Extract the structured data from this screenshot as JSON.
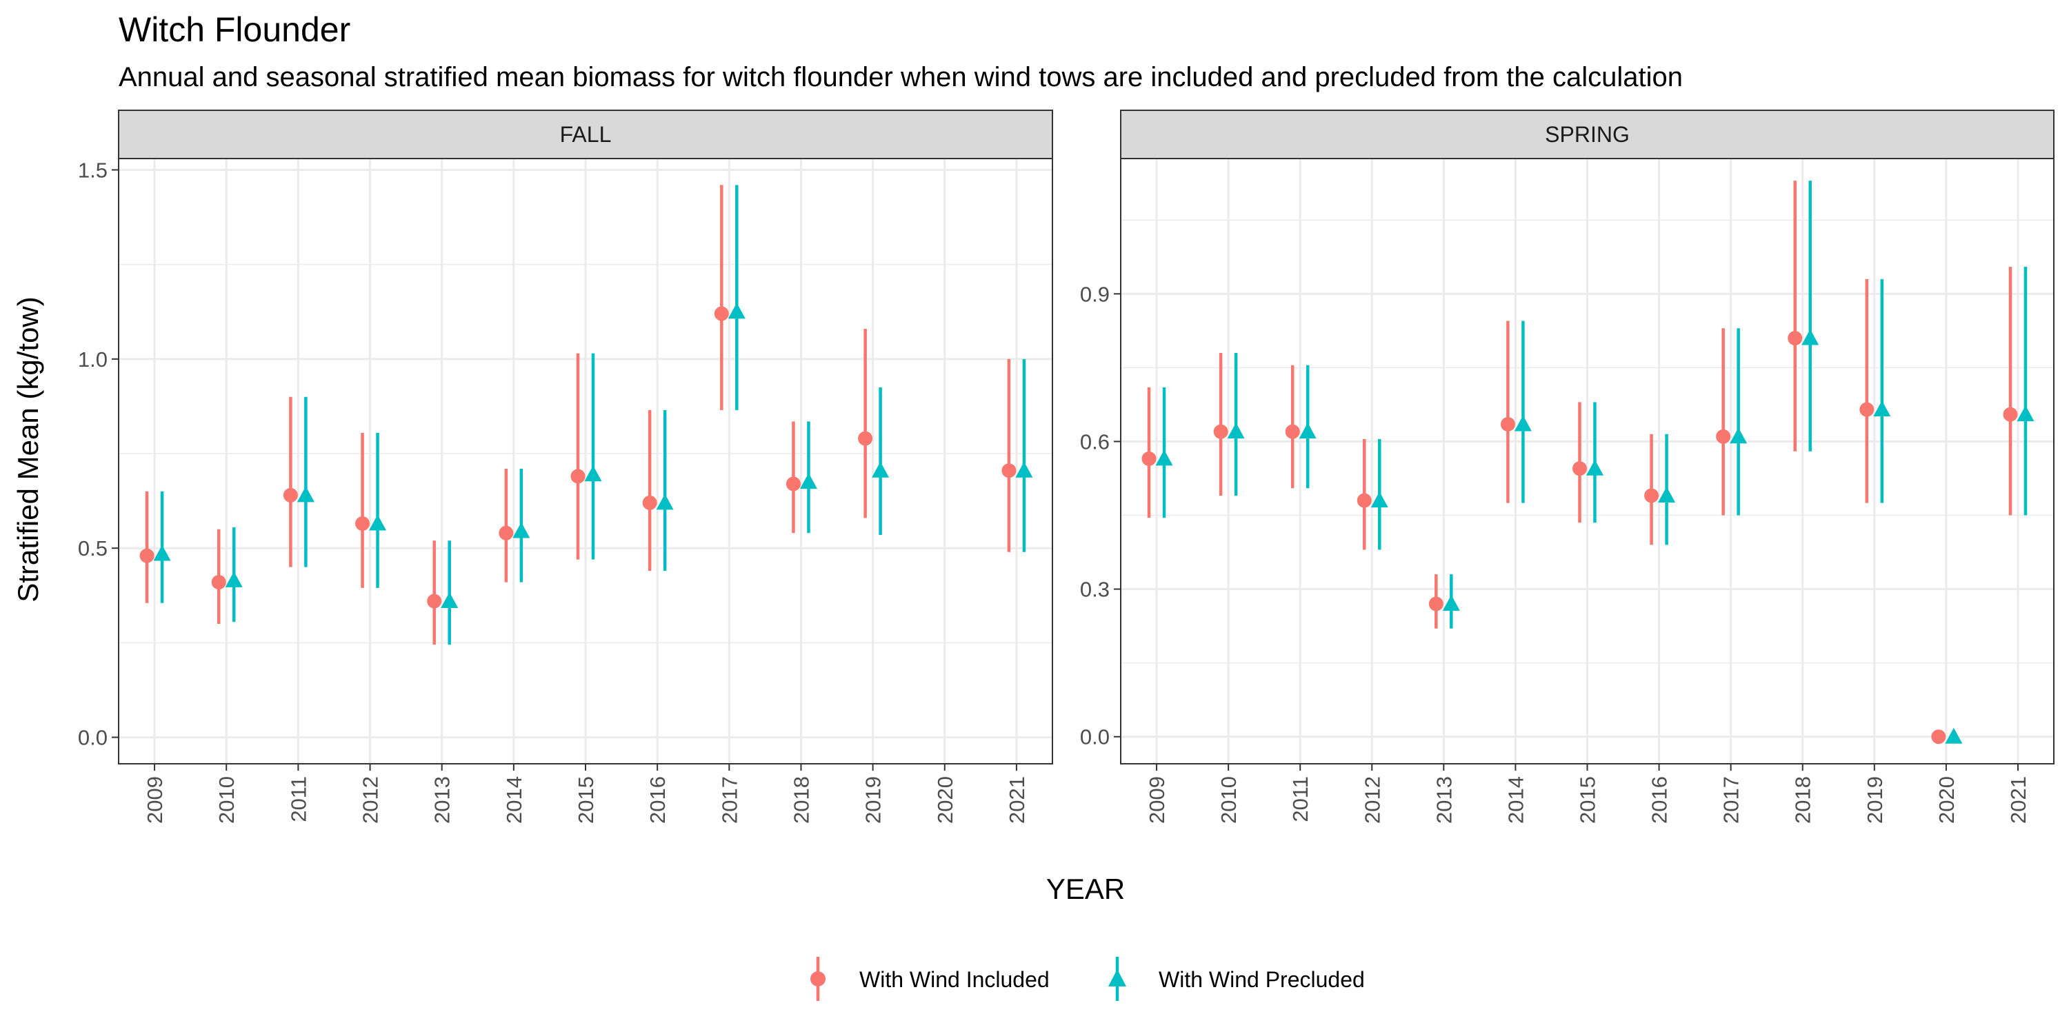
{
  "title": "Witch Flounder",
  "subtitle": "Annual and seasonal stratified mean biomass for witch flounder when wind tows are included and precluded from the calculation",
  "xlabel": "YEAR",
  "ylabel": "Stratified Mean (kg/tow)",
  "legend": {
    "position": "bottom",
    "items": [
      {
        "label": "With Wind Included",
        "color": "#F8766D",
        "shape": "circle"
      },
      {
        "label": "With Wind Precluded",
        "color": "#00BFC4",
        "shape": "triangle"
      }
    ]
  },
  "chart_data": [
    {
      "type": "scatter",
      "panel": "FALL",
      "categories": [
        "2009",
        "2010",
        "2011",
        "2012",
        "2013",
        "2014",
        "2015",
        "2016",
        "2017",
        "2018",
        "2019",
        "2020",
        "2021"
      ],
      "yticks": [
        0.0,
        0.5,
        1.0,
        1.5
      ],
      "ytick_labels": [
        "0.0",
        "0.5",
        "1.0",
        "1.5"
      ],
      "ylim": [
        -0.07,
        1.53
      ],
      "grid": true,
      "series": [
        {
          "name": "With Wind Included",
          "color": "#F8766D",
          "shape": "circle",
          "values": [
            0.48,
            0.41,
            0.64,
            0.565,
            0.36,
            0.54,
            0.69,
            0.62,
            1.12,
            0.67,
            0.79,
            null,
            0.705
          ],
          "lower": [
            0.355,
            0.3,
            0.45,
            0.395,
            0.245,
            0.41,
            0.47,
            0.44,
            0.865,
            0.54,
            0.58,
            null,
            0.49
          ],
          "upper": [
            0.65,
            0.55,
            0.9,
            0.805,
            0.52,
            0.71,
            1.015,
            0.865,
            1.46,
            0.835,
            1.08,
            null,
            1.0
          ]
        },
        {
          "name": "With Wind Precluded",
          "color": "#00BFC4",
          "shape": "triangle",
          "values": [
            0.485,
            0.415,
            0.64,
            0.565,
            0.36,
            0.545,
            0.695,
            0.62,
            1.125,
            0.675,
            0.705,
            null,
            0.705
          ],
          "lower": [
            0.355,
            0.305,
            0.45,
            0.395,
            0.245,
            0.41,
            0.47,
            0.44,
            0.865,
            0.54,
            0.535,
            null,
            0.49
          ],
          "upper": [
            0.65,
            0.555,
            0.9,
            0.805,
            0.52,
            0.71,
            1.015,
            0.865,
            1.46,
            0.835,
            0.925,
            null,
            1.0
          ]
        }
      ]
    },
    {
      "type": "scatter",
      "panel": "SPRING",
      "categories": [
        "2009",
        "2010",
        "2011",
        "2012",
        "2013",
        "2014",
        "2015",
        "2016",
        "2017",
        "2018",
        "2019",
        "2020",
        "2021"
      ],
      "yticks": [
        0.0,
        0.3,
        0.6,
        0.9
      ],
      "ytick_labels": [
        "0.0",
        "0.3",
        "0.6",
        "0.9"
      ],
      "ylim": [
        -0.055,
        1.175
      ],
      "grid": true,
      "series": [
        {
          "name": "With Wind Included",
          "color": "#F8766D",
          "shape": "circle",
          "values": [
            0.565,
            0.62,
            0.62,
            0.48,
            0.27,
            0.635,
            0.545,
            0.49,
            0.61,
            0.81,
            0.665,
            0.0,
            0.655
          ],
          "lower": [
            0.445,
            0.49,
            0.505,
            0.38,
            0.22,
            0.475,
            0.435,
            0.39,
            0.45,
            0.58,
            0.475,
            null,
            0.45
          ],
          "upper": [
            0.71,
            0.78,
            0.755,
            0.605,
            0.33,
            0.845,
            0.68,
            0.615,
            0.83,
            1.13,
            0.93,
            null,
            0.955
          ]
        },
        {
          "name": "With Wind Precluded",
          "color": "#00BFC4",
          "shape": "triangle",
          "values": [
            0.565,
            0.62,
            0.62,
            0.48,
            0.27,
            0.635,
            0.545,
            0.49,
            0.61,
            0.81,
            0.665,
            0.0,
            0.655
          ],
          "lower": [
            0.445,
            0.49,
            0.505,
            0.38,
            0.22,
            0.475,
            0.435,
            0.39,
            0.45,
            0.58,
            0.475,
            null,
            0.45
          ],
          "upper": [
            0.71,
            0.78,
            0.755,
            0.605,
            0.33,
            0.845,
            0.68,
            0.615,
            0.83,
            1.13,
            0.93,
            null,
            0.955
          ]
        }
      ]
    }
  ]
}
